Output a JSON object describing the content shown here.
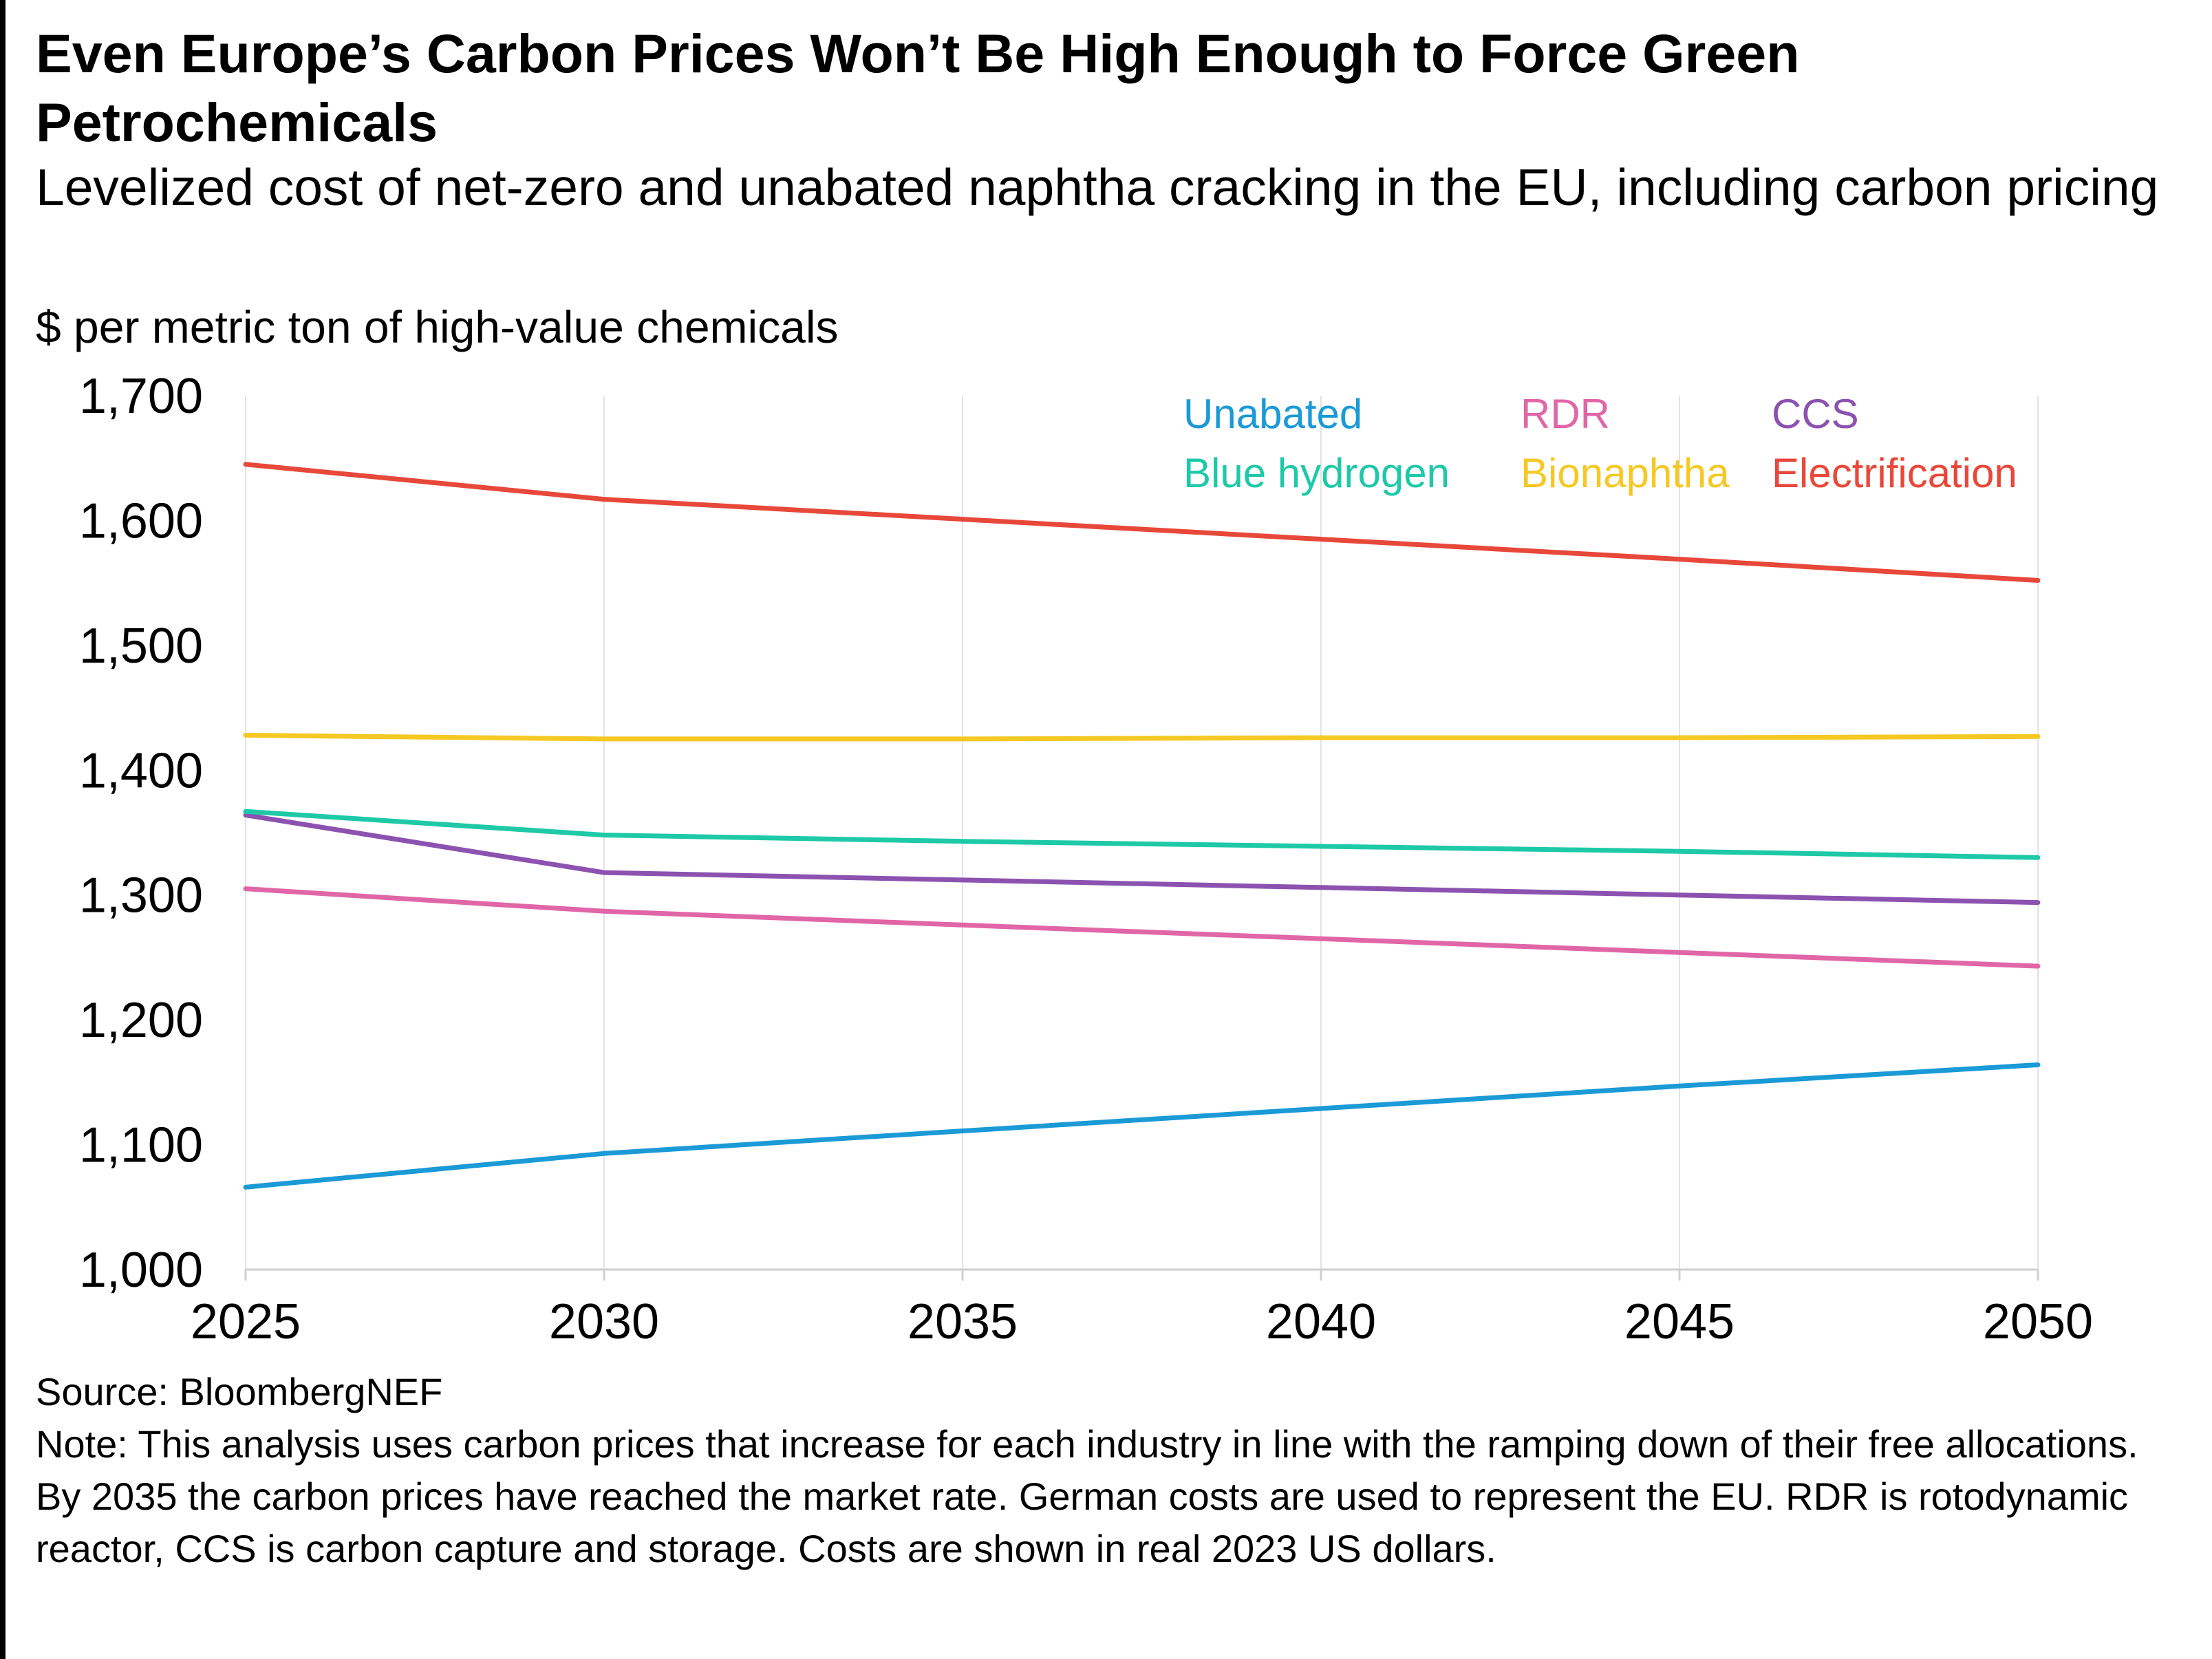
{
  "header": {
    "title": "Even Europe’s Carbon Prices Won’t Be High Enough to Force Green Petrochemicals",
    "subtitle": "Levelized cost of net-zero and unabated naphtha cracking in the EU, including carbon pricing",
    "unit_label": "$ per metric ton of high-value chemicals"
  },
  "footer": {
    "source": "Source: BloombergNEF",
    "note": "Note: This analysis uses carbon prices that increase for each industry in line with the ramping down of their free allocations. By 2035 the carbon prices have reached the market rate. German costs are used to represent the EU. RDR is rotodynamic reactor, CCS is carbon capture and storage. Costs are shown in real 2023 US dollars."
  },
  "chart_data": {
    "type": "line",
    "title": "Even Europe’s Carbon Prices Won’t Be High Enough to Force Green Petrochemicals",
    "subtitle": "Levelized cost of net-zero and unabated naphtha cracking in the EU, including carbon pricing",
    "ylabel": "$ per metric ton of high-value chemicals",
    "xlabel": "",
    "x": [
      2025,
      2030,
      2035,
      2040,
      2045,
      2050
    ],
    "x_tick_labels": [
      "2025",
      "2030",
      "2035",
      "2040",
      "2045",
      "2050"
    ],
    "xlim": [
      2025,
      2050
    ],
    "ylim": [
      1000,
      1700
    ],
    "y_ticks": [
      1000,
      1100,
      1200,
      1300,
      1400,
      1500,
      1600,
      1700
    ],
    "y_tick_labels": [
      "1,000",
      "1,100",
      "1,200",
      "1,300",
      "1,400",
      "1,500",
      "1,600",
      "1,700"
    ],
    "grid": "vertical",
    "legend_position": "top-right",
    "series": [
      {
        "name": "Unabated",
        "color": "#1a9ad6",
        "values": [
          1066,
          1093,
          1111,
          1129,
          1147,
          1164
        ]
      },
      {
        "name": "RDR",
        "color": "#e066a8",
        "values": [
          1305,
          1287,
          1276,
          1265,
          1254,
          1243
        ]
      },
      {
        "name": "CCS",
        "color": "#8c52b0",
        "values": [
          1364,
          1318,
          1312,
          1306,
          1300,
          1294
        ]
      },
      {
        "name": "Blue hydrogen",
        "color": "#1ec9a8",
        "values": [
          1367,
          1348,
          1343,
          1339,
          1335,
          1330
        ]
      },
      {
        "name": "Bionaphtha",
        "color": "#f5c823",
        "values": [
          1428,
          1425,
          1425,
          1426,
          1426,
          1427
        ]
      },
      {
        "name": "Electrification",
        "color": "#e8483a",
        "values": [
          1645,
          1617,
          1601,
          1585,
          1569,
          1552
        ]
      }
    ]
  }
}
